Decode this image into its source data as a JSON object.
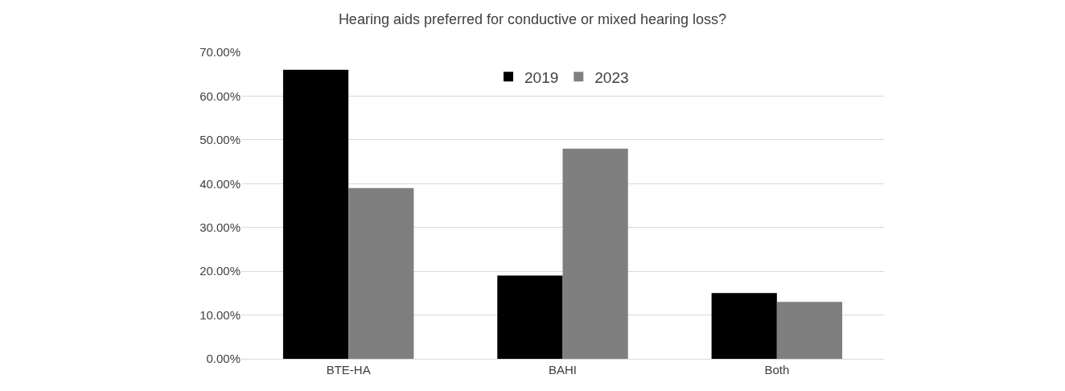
{
  "chart_data": {
    "type": "bar",
    "title": "Hearing aids preferred for conductive or mixed hearing loss?",
    "categories": [
      "BTE-HA",
      "BAHI",
      "Both"
    ],
    "series": [
      {
        "name": "2019",
        "color": "#000000",
        "values": [
          66,
          19,
          15
        ]
      },
      {
        "name": "2023",
        "color": "#7f7f7f",
        "values": [
          39,
          48,
          13
        ]
      }
    ],
    "ylim": [
      0,
      70
    ],
    "yticks": [
      {
        "value": 0,
        "label": "0.00%"
      },
      {
        "value": 10,
        "label": "10.00%"
      },
      {
        "value": 20,
        "label": "20.00%"
      },
      {
        "value": 30,
        "label": "30.00%"
      },
      {
        "value": 40,
        "label": "40.00%"
      },
      {
        "value": 50,
        "label": "50.00%"
      },
      {
        "value": 60,
        "label": "60.00%"
      },
      {
        "value": 70,
        "label": "70.00%"
      }
    ],
    "grid": "y",
    "legend": "top"
  }
}
